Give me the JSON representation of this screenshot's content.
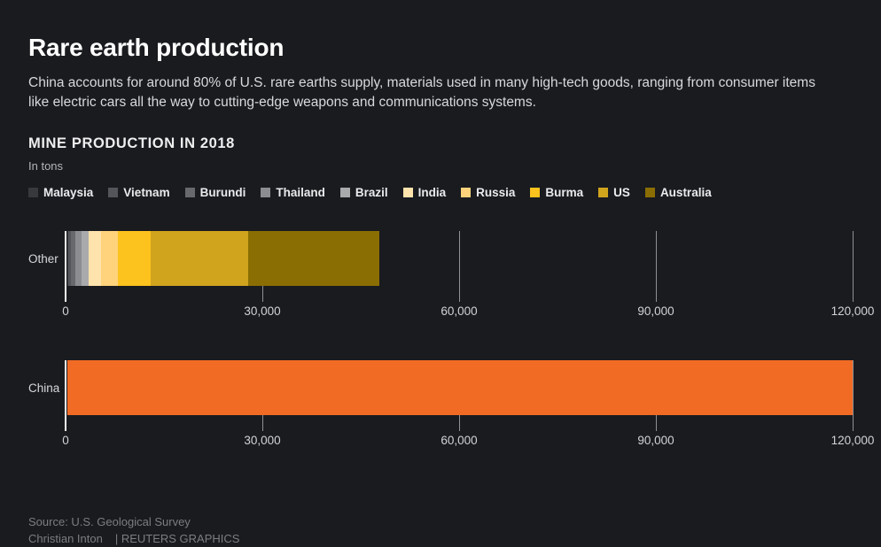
{
  "page": {
    "background": "#1a1b1f",
    "accent_orange": "#f26b25"
  },
  "header": {
    "title": "Rare earth production",
    "subtitle": "China accounts for around 80% of U.S. rare earths supply, materials used in many high-tech goods, ranging from consumer items like electric cars all the way to cutting-edge weapons and communications systems."
  },
  "section": {
    "heading": "MINE PRODUCTION IN 2018",
    "unit_label": "In tons"
  },
  "legend": [
    {
      "label": "Malaysia",
      "color": "#38393d"
    },
    {
      "label": "Vietnam",
      "color": "#54555a"
    },
    {
      "label": "Burundi",
      "color": "#68696d"
    },
    {
      "label": "Thailand",
      "color": "#8c8d90"
    },
    {
      "label": "Brazil",
      "color": "#a9aaac"
    },
    {
      "label": "India",
      "color": "#ffe3ac"
    },
    {
      "label": "Russia",
      "color": "#ffd37b"
    },
    {
      "label": "Burma",
      "color": "#fcc21d"
    },
    {
      "label": "US",
      "color": "#d1a41e"
    },
    {
      "label": "Australia",
      "color": "#8a6e03"
    }
  ],
  "chart_data": {
    "type": "bar",
    "orientation": "horizontal",
    "title": "MINE PRODUCTION IN 2018",
    "ylabel": "In tons",
    "unit": "tons",
    "xlim": [
      0,
      120000
    ],
    "grid": "vertical-ticks",
    "legend_position": "top",
    "x_ticks": [
      {
        "value": 0,
        "label": "0"
      },
      {
        "value": 30000,
        "label": "30,000"
      },
      {
        "value": 60000,
        "label": "60,000"
      },
      {
        "value": 90000,
        "label": "90,000"
      },
      {
        "value": 120000,
        "label": "120,000"
      }
    ],
    "rows": [
      {
        "category": "Other",
        "stacked": true,
        "total": 47700,
        "segments": [
          {
            "name": "Malaysia",
            "value": 200,
            "color": "#38393d"
          },
          {
            "name": "Vietnam",
            "value": 400,
            "color": "#54555a"
          },
          {
            "name": "Burundi",
            "value": 600,
            "color": "#68696d"
          },
          {
            "name": "Thailand",
            "value": 1000,
            "color": "#8c8d90"
          },
          {
            "name": "Brazil",
            "value": 1100,
            "color": "#a9aaac"
          },
          {
            "name": "India",
            "value": 1800,
            "color": "#ffe3ac"
          },
          {
            "name": "Russia",
            "value": 2600,
            "color": "#ffd37b"
          },
          {
            "name": "Burma",
            "value": 5000,
            "color": "#fcc21d"
          },
          {
            "name": "US",
            "value": 15000,
            "color": "#d1a41e"
          },
          {
            "name": "Australia",
            "value": 20000,
            "color": "#8a6e03"
          }
        ]
      },
      {
        "category": "China",
        "stacked": false,
        "total": 120000,
        "segments": [
          {
            "name": "China",
            "value": 120000,
            "color": "#f26b25"
          }
        ]
      }
    ]
  },
  "footer": {
    "source": "Source: U.S. Geological Survey",
    "credit": "Christian Inton",
    "brand": "| REUTERS GRAPHICS"
  }
}
